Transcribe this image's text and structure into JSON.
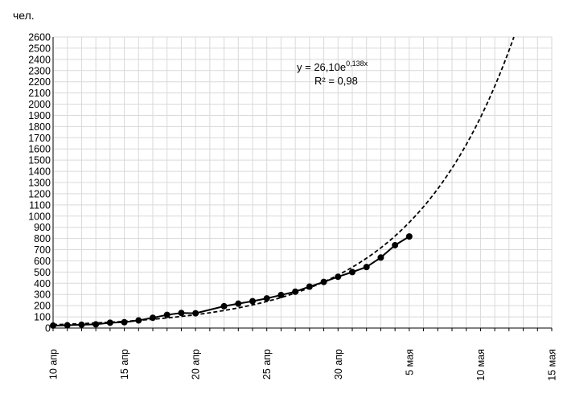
{
  "chart_data": {
    "type": "line",
    "ylabel": "чел.",
    "ylim": [
      0,
      2600
    ],
    "ytick_step": 100,
    "grid": true,
    "xlim": [
      "2020-04-10",
      "2020-05-15"
    ],
    "x_ticks": [
      {
        "date": "2020-04-10",
        "label": "10 апр"
      },
      {
        "date": "2020-04-15",
        "label": "15 апр"
      },
      {
        "date": "2020-04-20",
        "label": "20 апр"
      },
      {
        "date": "2020-04-25",
        "label": "25 апр"
      },
      {
        "date": "2020-04-30",
        "label": "30 апр"
      },
      {
        "date": "2020-05-05",
        "label": "5 мая"
      },
      {
        "date": "2020-05-10",
        "label": "10 мая"
      },
      {
        "date": "2020-05-15",
        "label": "15 мая"
      }
    ],
    "series": [
      {
        "style": "solid-with-markers",
        "color": "#000000",
        "points": [
          {
            "x": "2020-04-10",
            "y": 22
          },
          {
            "x": "2020-04-11",
            "y": 25
          },
          {
            "x": "2020-04-12",
            "y": 30
          },
          {
            "x": "2020-04-13",
            "y": 33
          },
          {
            "x": "2020-04-14",
            "y": 48
          },
          {
            "x": "2020-04-15",
            "y": 52
          },
          {
            "x": "2020-04-16",
            "y": 68
          },
          {
            "x": "2020-04-17",
            "y": 92
          },
          {
            "x": "2020-04-18",
            "y": 118
          },
          {
            "x": "2020-04-19",
            "y": 135
          },
          {
            "x": "2020-04-20",
            "y": 132
          },
          {
            "x": "2020-04-22",
            "y": 195
          },
          {
            "x": "2020-04-23",
            "y": 218
          },
          {
            "x": "2020-04-24",
            "y": 240
          },
          {
            "x": "2020-04-25",
            "y": 265
          },
          {
            "x": "2020-04-26",
            "y": 295
          },
          {
            "x": "2020-04-27",
            "y": 325
          },
          {
            "x": "2020-04-28",
            "y": 370
          },
          {
            "x": "2020-04-29",
            "y": 412
          },
          {
            "x": "2020-04-30",
            "y": 458
          },
          {
            "x": "2020-05-01",
            "y": 500
          },
          {
            "x": "2020-05-02",
            "y": 545
          },
          {
            "x": "2020-05-03",
            "y": 630
          },
          {
            "x": "2020-05-04",
            "y": 740
          },
          {
            "x": "2020-05-05",
            "y": 818
          }
        ]
      },
      {
        "style": "dashed-trendline",
        "color": "#000000",
        "fit": {
          "type": "exponential",
          "a": 26.1,
          "b": 0.138,
          "x_origin": "2020-04-09"
        }
      }
    ],
    "annotations": {
      "equation_prefix": "y = 26,10e",
      "equation_exponent": "0,138x",
      "r_squared": "R² = 0,98"
    }
  }
}
